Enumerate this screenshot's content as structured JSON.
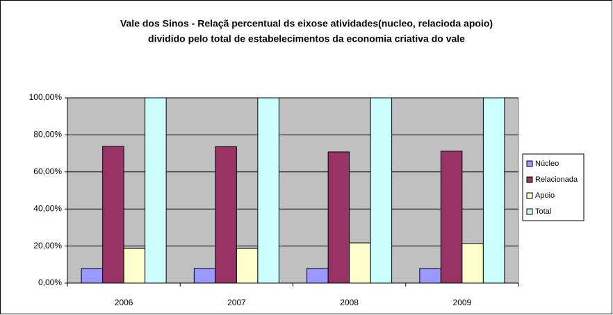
{
  "chart_data": {
    "type": "bar",
    "title": [
      "Vale dos Sinos - Relaçã percentual ds eixose atividades(nucleo, relacioda apoio)",
      "dividido pelo total de estabelecimentos da economia criativa do vale"
    ],
    "categories": [
      "2006",
      "2007",
      "2008",
      "2009"
    ],
    "series": [
      {
        "name": "Núcleo",
        "color": "#9999ff",
        "values": [
          7.9,
          7.9,
          7.9,
          7.9
        ]
      },
      {
        "name": "Relacionada",
        "color": "#993366",
        "values": [
          73.8,
          73.6,
          70.8,
          71.2
        ]
      },
      {
        "name": "Apoio",
        "color": "#ffffcc",
        "values": [
          18.7,
          18.7,
          21.7,
          21.3
        ]
      },
      {
        "name": "Total",
        "color": "#ccffff",
        "values": [
          100,
          100,
          100,
          100
        ]
      }
    ],
    "ylim": [
      0,
      100
    ],
    "yticks": [
      {
        "value": 0,
        "label": "0,00%"
      },
      {
        "value": 20,
        "label": "20,00%"
      },
      {
        "value": 40,
        "label": "40,00%"
      },
      {
        "value": 60,
        "label": "60,00%"
      },
      {
        "value": 80,
        "label": "80,00%"
      },
      {
        "value": 100,
        "label": "100,00%"
      }
    ],
    "grid": true,
    "legend": "right"
  }
}
